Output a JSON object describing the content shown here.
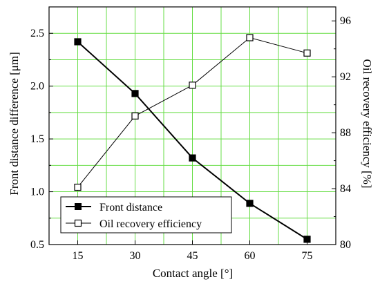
{
  "chart_data": {
    "type": "line",
    "xlabel": "Contact angle [°]",
    "ylabel_left": "Front distance difference [μm]",
    "ylabel_right": "Oil recovery efficiency [%]",
    "x_ticks": [
      "15",
      "30",
      "45",
      "60",
      "75"
    ],
    "xlim": [
      7.5,
      82.5
    ],
    "y_left_ticks": [
      "0.5",
      "1.0",
      "1.5",
      "2.0",
      "2.5"
    ],
    "ylim_left": [
      0.5,
      2.75
    ],
    "y_right_ticks": [
      "80",
      "84",
      "88",
      "92",
      "96"
    ],
    "ylim_right": [
      80,
      97
    ],
    "grid": true,
    "grid_color": "#66dd44",
    "legend_position": "bottom-left",
    "series": [
      {
        "name": "Front distance",
        "axis": "left",
        "marker": "filled-square",
        "x": [
          15,
          30,
          45,
          60,
          75
        ],
        "y": [
          2.42,
          1.93,
          1.32,
          0.89,
          0.55
        ]
      },
      {
        "name": "Oil recovery efficiency",
        "axis": "right",
        "marker": "open-square",
        "x": [
          15,
          30,
          45,
          60,
          75
        ],
        "y": [
          84.1,
          89.2,
          91.4,
          94.8,
          93.7
        ]
      }
    ]
  }
}
